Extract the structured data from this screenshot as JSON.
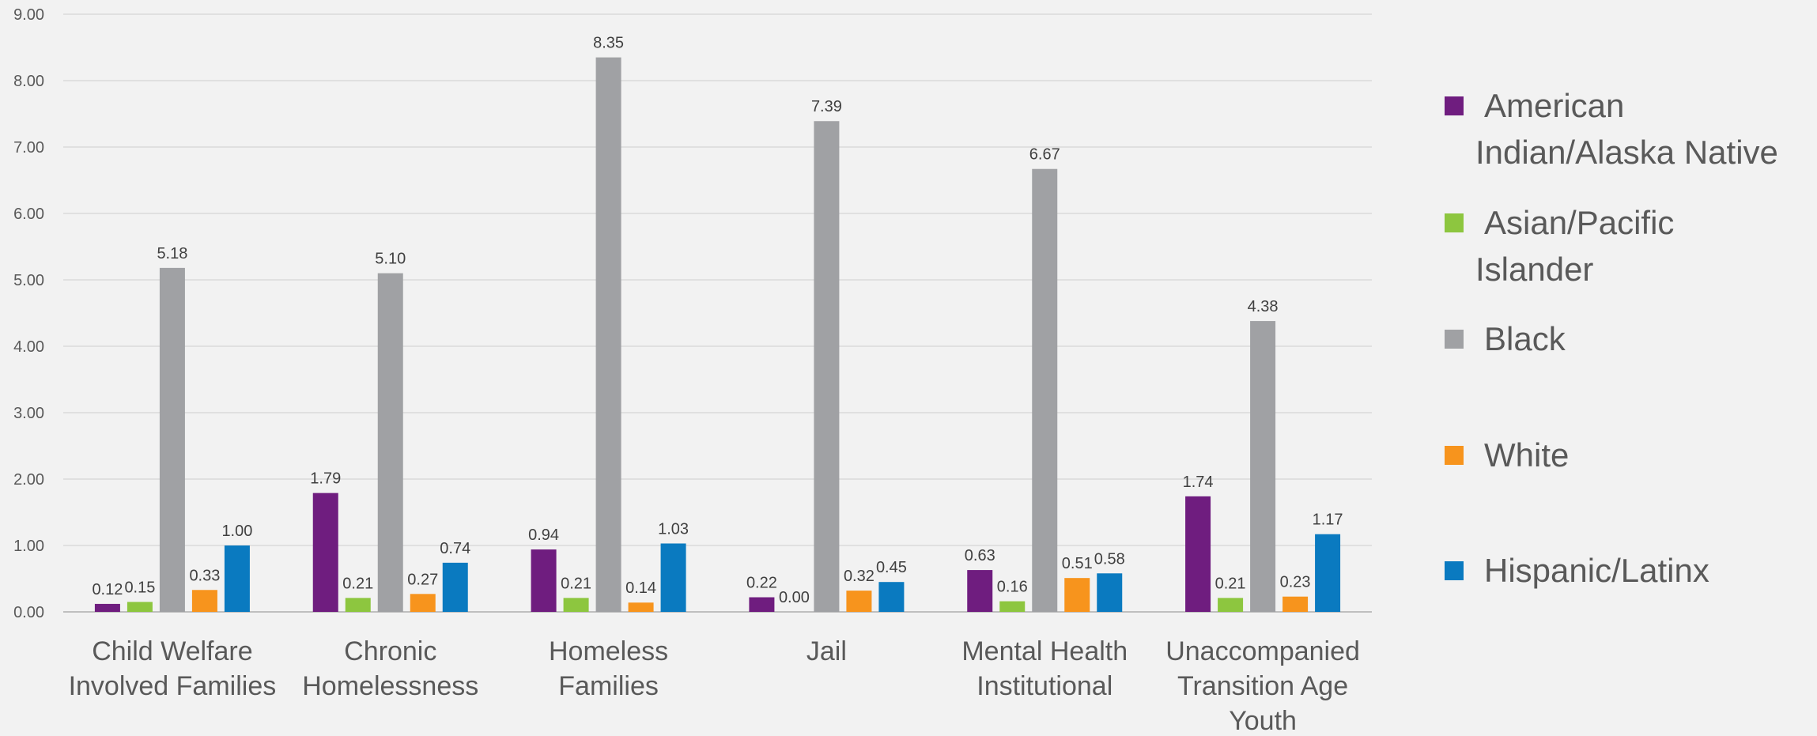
{
  "chart_data": {
    "type": "bar",
    "title": "",
    "xlabel": "",
    "ylabel": "",
    "ylim": [
      0,
      9
    ],
    "yticks": [
      "0.00",
      "1.00",
      "2.00",
      "3.00",
      "4.00",
      "5.00",
      "6.00",
      "7.00",
      "8.00",
      "9.00"
    ],
    "grid": true,
    "legend_position": "right",
    "categories": [
      [
        "Child Welfare",
        "Involved Families"
      ],
      [
        "Chronic",
        "Homelessness"
      ],
      [
        "Homeless",
        "Families"
      ],
      [
        "Jail"
      ],
      [
        "Mental Health",
        "Institutional"
      ],
      [
        "Unaccompanied",
        "Transition Age",
        "Youth"
      ]
    ],
    "series": [
      {
        "name": "American Indian/Alaska Native",
        "legend_lines": [
          "American",
          "Indian/Alaska Native"
        ],
        "color": "#6f1d7f",
        "values": [
          0.12,
          1.79,
          0.94,
          0.22,
          0.63,
          1.74
        ],
        "labels": [
          "0.12",
          "1.79",
          "0.94",
          "0.22",
          "0.63",
          "1.74"
        ]
      },
      {
        "name": "Asian/Pacific Islander",
        "legend_lines": [
          "Asian/Pacific",
          "Islander"
        ],
        "color": "#8dc63f",
        "values": [
          0.15,
          0.21,
          0.21,
          0.0,
          0.16,
          0.21
        ],
        "labels": [
          "0.15",
          "0.21",
          "0.21",
          "0.00",
          "0.16",
          "0.21"
        ]
      },
      {
        "name": "Black",
        "legend_lines": [
          "Black"
        ],
        "color": "#a0a1a4",
        "values": [
          5.18,
          5.1,
          8.35,
          7.39,
          6.67,
          4.38
        ],
        "labels": [
          "5.18",
          "5.10",
          "8.35",
          "7.39",
          "6.67",
          "4.38"
        ]
      },
      {
        "name": "White",
        "legend_lines": [
          "White"
        ],
        "color": "#f7941d",
        "values": [
          0.33,
          0.27,
          0.14,
          0.32,
          0.51,
          0.23
        ],
        "labels": [
          "0.33",
          "0.27",
          "0.14",
          "0.32",
          "0.51",
          "0.23"
        ]
      },
      {
        "name": "Hispanic/Latinx",
        "legend_lines": [
          "Hispanic/Latinx"
        ],
        "color": "#0a7ac0",
        "values": [
          1.0,
          0.74,
          1.03,
          0.45,
          0.58,
          1.17
        ],
        "labels": [
          "1.00",
          "0.74",
          "1.03",
          "0.45",
          "0.58",
          "1.17"
        ]
      }
    ]
  }
}
